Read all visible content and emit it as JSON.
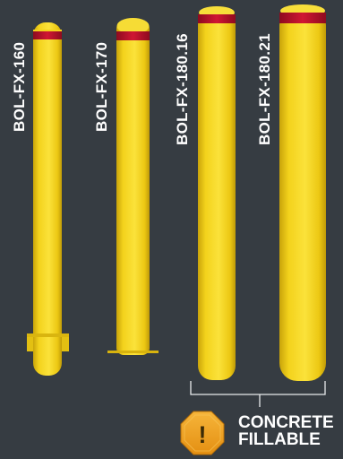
{
  "products": [
    {
      "code": "BOL-FX-160"
    },
    {
      "code": "BOL-FX-170"
    },
    {
      "code": "BOL-FX-180.16"
    },
    {
      "code": "BOL-FX-180.21"
    }
  ],
  "callout": {
    "line1": "CONCRETE",
    "line2": "FILLABLE",
    "icon_symbol": "!",
    "icon": "warning-octagon-icon"
  },
  "colors": {
    "background": "#363c42",
    "bollard_yellow": "#f2d21a",
    "reflective_band": "#c8102e",
    "icon_orange": "#f0a21e"
  }
}
